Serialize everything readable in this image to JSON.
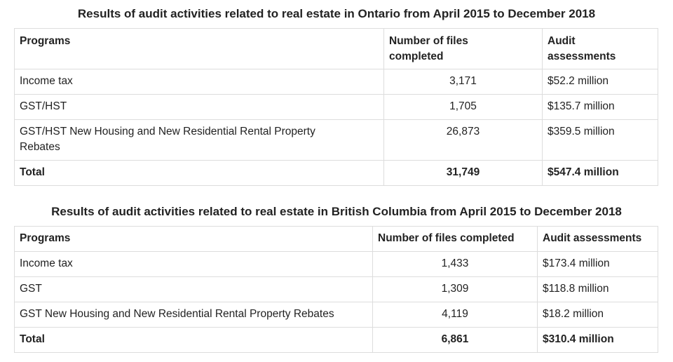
{
  "ontario": {
    "title": "Results of audit activities related to real estate in Ontario from April 2015 to December 2018",
    "headers": {
      "programs": "Programs",
      "files_line1": "Number of files",
      "files_line2": "completed",
      "audit_line1": "Audit",
      "audit_line2": "assessments"
    },
    "rows": [
      {
        "program": "Income tax",
        "files": "3,171",
        "assessment": "$52.2 million"
      },
      {
        "program": "GST/HST",
        "files": "1,705",
        "assessment": "$135.7 million"
      },
      {
        "program": "GST/HST New Housing and New Residential Rental Property Rebates",
        "files": "26,873",
        "assessment": "$359.5 million"
      }
    ],
    "total": {
      "label": "Total",
      "files": "31,749",
      "assessment": "$547.4 million"
    }
  },
  "british_columbia": {
    "title": "Results of audit activities related to real estate in British Columbia from April 2015 to December 2018",
    "headers": {
      "programs": "Programs",
      "files": "Number of files completed",
      "audit": "Audit assessments"
    },
    "rows": [
      {
        "program": "Income tax",
        "files": "1,433",
        "assessment": "$173.4 million"
      },
      {
        "program": "GST",
        "files": "1,309",
        "assessment": "$118.8 million"
      },
      {
        "program": "GST New Housing and New Residential Rental Property Rebates",
        "files": "4,119",
        "assessment": "$18.2 million"
      }
    ],
    "total": {
      "label": "Total",
      "files": "6,861",
      "assessment": "$310.4 million"
    }
  }
}
